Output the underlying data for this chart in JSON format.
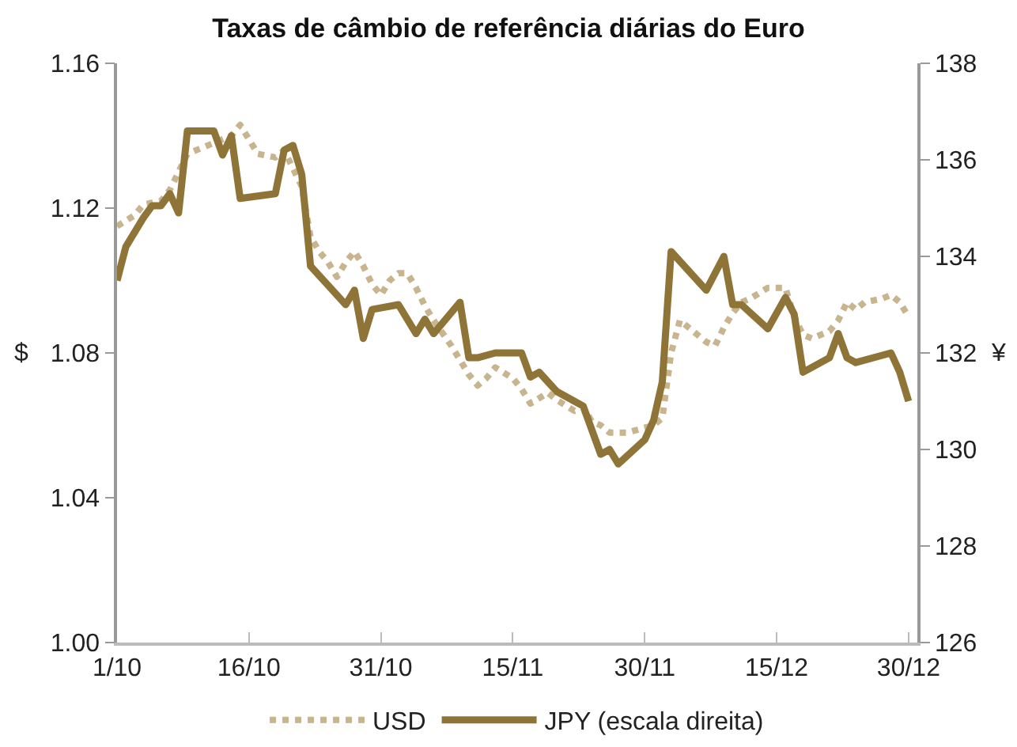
{
  "chart_data": {
    "type": "line",
    "title": "Taxas de câmbio de referência diárias do Euro",
    "ylabel": "$",
    "y2label": "¥",
    "xlim": [
      "--10-01",
      "--12-31"
    ],
    "xticks": [
      {
        "value": "--10-01",
        "label": "1/10"
      },
      {
        "value": "--10-16",
        "label": "16/10"
      },
      {
        "value": "--10-31",
        "label": "31/10"
      },
      {
        "value": "--11-15",
        "label": "15/11"
      },
      {
        "value": "--11-30",
        "label": "30/11"
      },
      {
        "value": "--12-15",
        "label": "15/12"
      },
      {
        "value": "--12-30",
        "label": "30/12"
      }
    ],
    "ylim": [
      1.0,
      1.16
    ],
    "yticks": [
      {
        "value": 1.0,
        "label": "1.00"
      },
      1.04,
      1.08,
      1.12,
      1.16
    ],
    "y2lim": [
      126,
      138
    ],
    "y2ticks": [
      126,
      128,
      130,
      132,
      134,
      136,
      138
    ],
    "grid": false,
    "legend": "bottom",
    "series": [
      {
        "name": "USD",
        "color": "#c8b48e",
        "line_style": "dotted",
        "x": [
          "--10-01",
          "--10-03",
          "--10-04",
          "--10-06",
          "--10-07",
          "--10-09",
          "--10-11",
          "--10-14",
          "--10-15",
          "--10-16",
          "--10-17",
          "--10-19",
          "--10-20",
          "--10-21",
          "--10-22",
          "--10-23",
          "--10-24",
          "--10-25",
          "--10-26",
          "--10-27",
          "--10-28",
          "--10-29",
          "--10-30",
          "--10-31",
          "--11-01",
          "--11-02",
          "--11-03",
          "--11-04",
          "--11-05",
          "--11-06",
          "--11-08",
          "--11-09",
          "--11-10",
          "--11-11",
          "--11-12",
          "--11-13",
          "--11-15",
          "--11-16",
          "--11-17",
          "--11-19",
          "--11-20",
          "--11-22",
          "--11-23",
          "--11-24",
          "--11-25",
          "--11-26",
          "--11-28",
          "--12-01",
          "--12-02",
          "--12-03",
          "--12-04",
          "--12-05",
          "--12-07",
          "--12-08",
          "--12-09",
          "--12-10",
          "--12-11",
          "--12-12",
          "--12-14",
          "--12-16",
          "--12-17",
          "--12-18",
          "--12-19",
          "--12-21",
          "--12-22",
          "--12-23",
          "--12-24",
          "--12-25",
          "--12-27",
          "--12-28",
          "--12-29",
          "--12-30"
        ],
        "values": [
          1.115,
          1.118,
          1.121,
          1.122,
          1.125,
          1.135,
          1.137,
          1.14,
          1.143,
          1.139,
          1.135,
          1.134,
          1.136,
          1.131,
          1.126,
          1.112,
          1.108,
          1.105,
          1.101,
          1.105,
          1.108,
          1.104,
          1.099,
          1.096,
          1.1,
          1.102,
          1.102,
          1.098,
          1.093,
          1.089,
          1.082,
          1.078,
          1.074,
          1.071,
          1.073,
          1.076,
          1.073,
          1.07,
          1.066,
          1.069,
          1.067,
          1.064,
          1.065,
          1.061,
          1.06,
          1.058,
          1.058,
          1.06,
          1.062,
          1.08,
          1.089,
          1.087,
          1.083,
          1.082,
          1.087,
          1.091,
          1.094,
          1.095,
          1.098,
          1.098,
          1.09,
          1.085,
          1.084,
          1.086,
          1.089,
          1.094,
          1.092,
          1.094,
          1.095,
          1.096,
          1.094,
          1.09
        ]
      },
      {
        "name": "JPY (escala direita)",
        "color": "#8f7437",
        "line_style": "solid",
        "axis": "y2",
        "x": [
          "--10-01",
          "--10-02",
          "--10-04",
          "--10-05",
          "--10-06",
          "--10-07",
          "--10-08",
          "--10-09",
          "--10-12",
          "--10-13",
          "--10-14",
          "--10-15",
          "--10-19",
          "--10-20",
          "--10-21",
          "--10-22",
          "--10-23",
          "--10-27",
          "--10-28",
          "--10-29",
          "--10-30",
          "--11-02",
          "--11-04",
          "--11-05",
          "--11-06",
          "--11-09",
          "--11-10",
          "--11-11",
          "--11-13",
          "--11-16",
          "--11-17",
          "--11-18",
          "--11-19",
          "--11-20",
          "--11-23",
          "--11-25",
          "--11-26",
          "--11-27",
          "--11-30",
          "--12-01",
          "--12-02",
          "--12-03",
          "--12-07",
          "--12-09",
          "--12-10",
          "--12-11",
          "--12-14",
          "--12-16",
          "--12-17",
          "--12-18",
          "--12-21",
          "--12-22",
          "--12-23",
          "--12-24",
          "--12-28",
          "--12-29",
          "--12-30"
        ],
        "values": [
          133.5,
          134.2,
          134.8,
          135.05,
          135.05,
          135.3,
          134.9,
          136.6,
          136.6,
          136.1,
          136.5,
          135.2,
          135.3,
          136.2,
          136.3,
          135.7,
          133.8,
          133.0,
          133.3,
          132.3,
          132.9,
          133.0,
          132.4,
          132.7,
          132.4,
          133.05,
          131.9,
          131.9,
          132.0,
          132.0,
          131.5,
          131.6,
          131.4,
          131.2,
          130.9,
          129.9,
          130.0,
          129.7,
          130.2,
          130.6,
          131.4,
          134.1,
          133.3,
          134.0,
          133.0,
          133.0,
          132.5,
          133.15,
          132.8,
          131.6,
          131.9,
          132.4,
          131.9,
          131.8,
          132.0,
          131.6,
          131.0
        ]
      }
    ]
  }
}
